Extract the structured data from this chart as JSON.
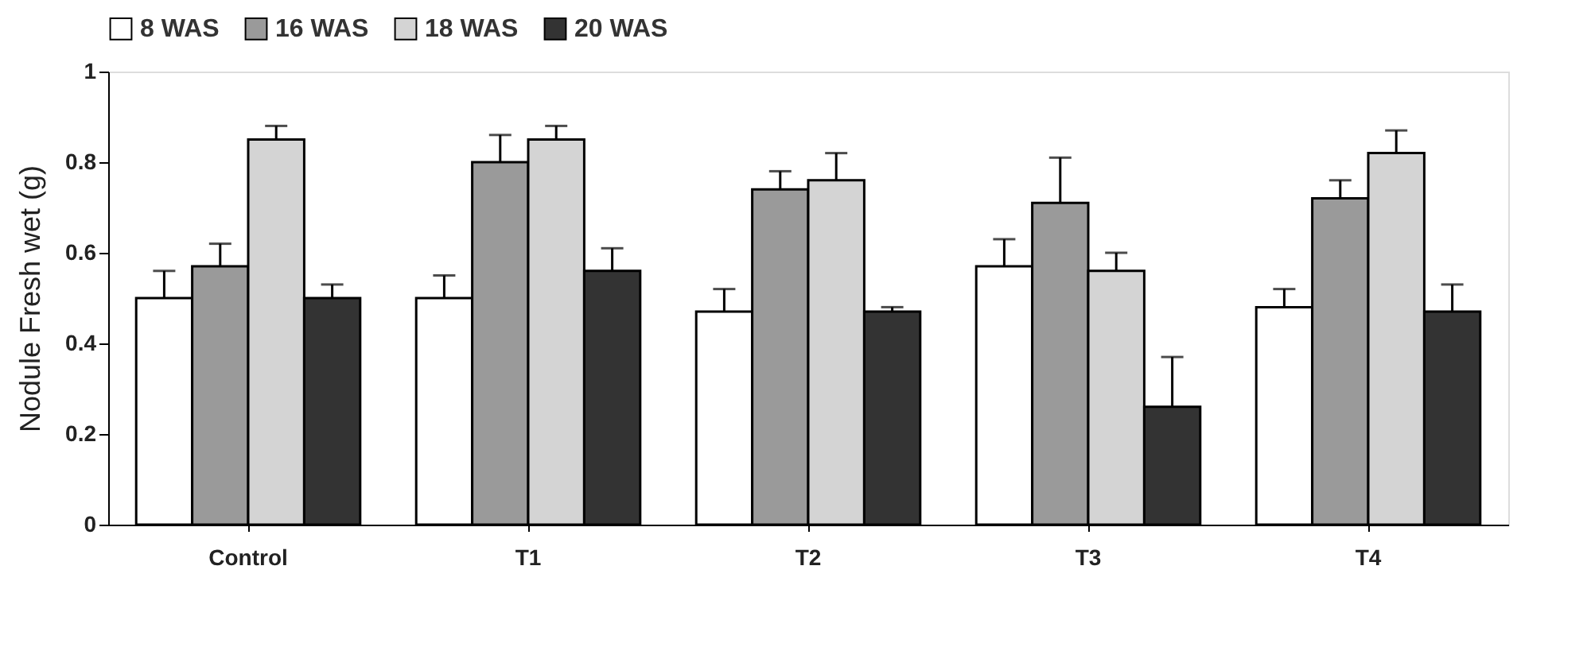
{
  "chart_data": {
    "type": "bar",
    "ylabel": "Nodule Fresh wet (g)",
    "categories": [
      "Control",
      "T1",
      "T2",
      "T3",
      "T4"
    ],
    "series": [
      {
        "name": "8 WAS",
        "color": "#ffffff",
        "values": [
          0.5,
          0.5,
          0.47,
          0.57,
          0.48
        ],
        "errors": [
          [
            0.5,
            0.56
          ],
          [
            0.5,
            0.55
          ],
          [
            0.47,
            0.52
          ],
          [
            0.57,
            0.63
          ],
          [
            0.48,
            0.52
          ]
        ]
      },
      {
        "name": "16 WAS",
        "color": "#9a9a9a",
        "values": [
          0.57,
          0.8,
          0.74,
          0.71,
          0.72
        ],
        "errors": [
          [
            0.57,
            0.62
          ],
          [
            0.8,
            0.86
          ],
          [
            0.74,
            0.78
          ],
          [
            0.71,
            0.81
          ],
          [
            0.72,
            0.76
          ]
        ]
      },
      {
        "name": "18 WAS",
        "color": "#d4d4d4",
        "values": [
          0.85,
          0.85,
          0.76,
          0.56,
          0.82
        ],
        "errors": [
          [
            0.85,
            0.88
          ],
          [
            0.85,
            0.88
          ],
          [
            0.76,
            0.82
          ],
          [
            0.56,
            0.6
          ],
          [
            0.82,
            0.87
          ]
        ]
      },
      {
        "name": "20 WAS",
        "color": "#333333",
        "values": [
          0.5,
          0.56,
          0.47,
          0.26,
          0.47
        ],
        "errors": [
          [
            0.5,
            0.53
          ],
          [
            0.56,
            0.61
          ],
          [
            0.47,
            0.48
          ],
          [
            0.26,
            0.37
          ],
          [
            0.47,
            0.53
          ]
        ]
      }
    ],
    "ylim": [
      0,
      1
    ],
    "yticks": [
      0,
      0.2,
      0.4,
      0.6,
      0.8,
      1
    ],
    "grid": false,
    "legend": "top"
  }
}
